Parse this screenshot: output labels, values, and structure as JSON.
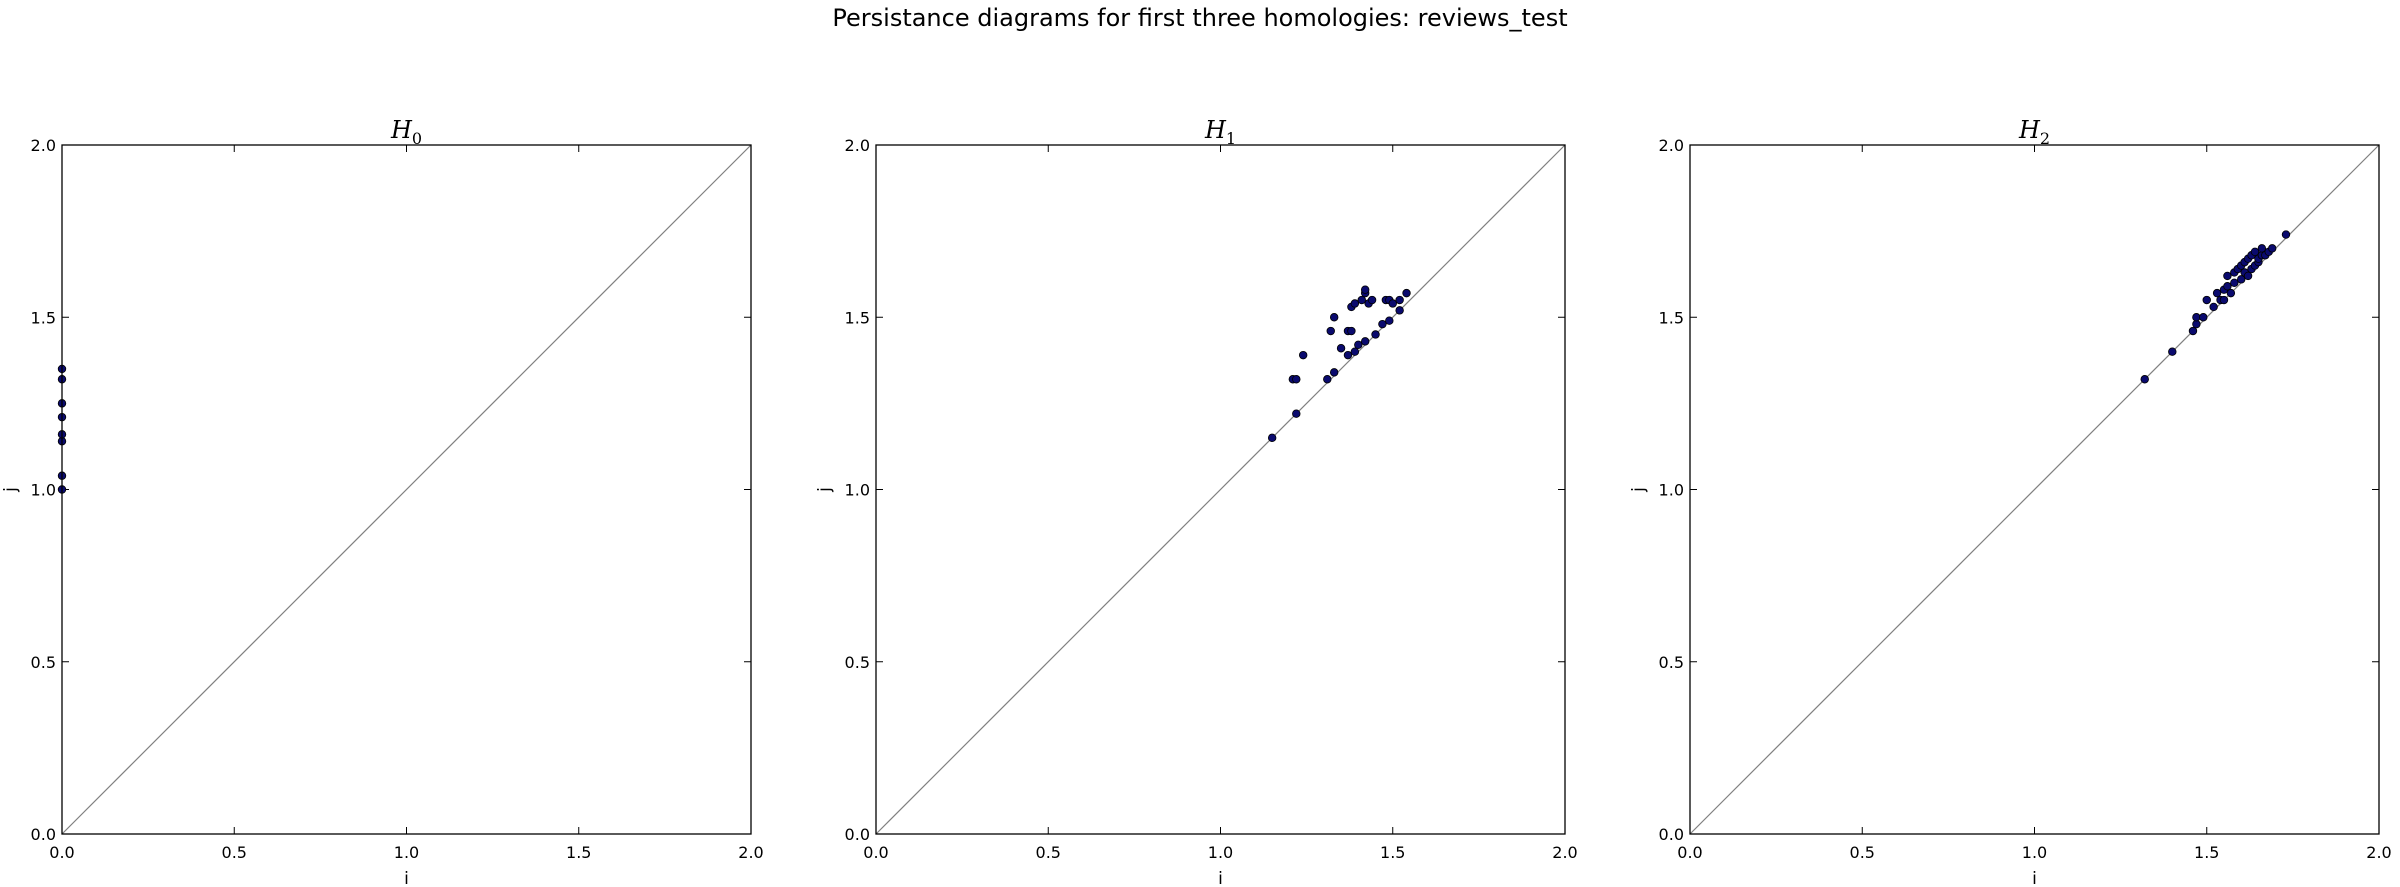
{
  "figure": {
    "title": "Persistance diagrams for first three homologies: reviews_test"
  },
  "colors": {
    "point_fill": "#0a0a6e",
    "point_edge": "#000000",
    "diagonal": "#808080",
    "axes": "#000000"
  },
  "chart_data": [
    {
      "type": "scatter",
      "title_main": "H",
      "title_sub": "0",
      "xlabel": "i",
      "ylabel": "j",
      "xlim": [
        0,
        2
      ],
      "ylim": [
        0,
        2
      ],
      "xticks": [
        "0.0",
        "0.5",
        "1.0",
        "1.5",
        "2.0"
      ],
      "yticks": [
        "0.0",
        "0.5",
        "1.0",
        "1.5",
        "2.0"
      ],
      "diagonal": true,
      "grid": false,
      "points": [
        [
          0,
          1.0
        ],
        [
          0,
          1.04
        ],
        [
          0,
          1.14
        ],
        [
          0,
          1.16
        ],
        [
          0,
          1.21
        ],
        [
          0,
          1.25
        ],
        [
          0,
          1.32
        ],
        [
          0,
          1.35
        ]
      ]
    },
    {
      "type": "scatter",
      "title_main": "H",
      "title_sub": "1",
      "xlabel": "i",
      "ylabel": "j",
      "xlim": [
        0,
        2
      ],
      "ylim": [
        0,
        2
      ],
      "xticks": [
        "0.0",
        "0.5",
        "1.0",
        "1.5",
        "2.0"
      ],
      "yticks": [
        "0.0",
        "0.5",
        "1.0",
        "1.5",
        "2.0"
      ],
      "diagonal": true,
      "grid": false,
      "points": [
        [
          1.15,
          1.15
        ],
        [
          1.22,
          1.22
        ],
        [
          1.21,
          1.32
        ],
        [
          1.22,
          1.32
        ],
        [
          1.24,
          1.39
        ],
        [
          1.31,
          1.32
        ],
        [
          1.33,
          1.34
        ],
        [
          1.32,
          1.46
        ],
        [
          1.33,
          1.5
        ],
        [
          1.35,
          1.41
        ],
        [
          1.37,
          1.46
        ],
        [
          1.38,
          1.46
        ],
        [
          1.37,
          1.39
        ],
        [
          1.39,
          1.4
        ],
        [
          1.4,
          1.42
        ],
        [
          1.42,
          1.43
        ],
        [
          1.38,
          1.53
        ],
        [
          1.39,
          1.54
        ],
        [
          1.41,
          1.55
        ],
        [
          1.42,
          1.57
        ],
        [
          1.42,
          1.58
        ],
        [
          1.43,
          1.54
        ],
        [
          1.44,
          1.55
        ],
        [
          1.45,
          1.45
        ],
        [
          1.47,
          1.48
        ],
        [
          1.48,
          1.55
        ],
        [
          1.49,
          1.55
        ],
        [
          1.49,
          1.49
        ],
        [
          1.5,
          1.54
        ],
        [
          1.52,
          1.55
        ],
        [
          1.52,
          1.52
        ],
        [
          1.54,
          1.57
        ]
      ]
    },
    {
      "type": "scatter",
      "title_main": "H",
      "title_sub": "2",
      "xlabel": "i",
      "ylabel": "j",
      "xlim": [
        0,
        2
      ],
      "ylim": [
        0,
        2
      ],
      "xticks": [
        "0.0",
        "0.5",
        "1.0",
        "1.5",
        "2.0"
      ],
      "yticks": [
        "0.0",
        "0.5",
        "1.0",
        "1.5",
        "2.0"
      ],
      "diagonal": true,
      "grid": false,
      "points": [
        [
          1.32,
          1.32
        ],
        [
          1.4,
          1.4
        ],
        [
          1.46,
          1.46
        ],
        [
          1.47,
          1.48
        ],
        [
          1.47,
          1.5
        ],
        [
          1.49,
          1.5
        ],
        [
          1.5,
          1.55
        ],
        [
          1.52,
          1.53
        ],
        [
          1.53,
          1.57
        ],
        [
          1.54,
          1.55
        ],
        [
          1.55,
          1.58
        ],
        [
          1.55,
          1.55
        ],
        [
          1.56,
          1.59
        ],
        [
          1.56,
          1.62
        ],
        [
          1.57,
          1.57
        ],
        [
          1.58,
          1.6
        ],
        [
          1.58,
          1.63
        ],
        [
          1.59,
          1.64
        ],
        [
          1.6,
          1.61
        ],
        [
          1.6,
          1.65
        ],
        [
          1.61,
          1.66
        ],
        [
          1.61,
          1.63
        ],
        [
          1.62,
          1.62
        ],
        [
          1.62,
          1.67
        ],
        [
          1.63,
          1.64
        ],
        [
          1.63,
          1.68
        ],
        [
          1.64,
          1.65
        ],
        [
          1.64,
          1.69
        ],
        [
          1.65,
          1.66
        ],
        [
          1.65,
          1.67
        ],
        [
          1.66,
          1.68
        ],
        [
          1.66,
          1.7
        ],
        [
          1.67,
          1.68
        ],
        [
          1.68,
          1.69
        ],
        [
          1.69,
          1.7
        ],
        [
          1.73,
          1.74
        ]
      ]
    }
  ]
}
